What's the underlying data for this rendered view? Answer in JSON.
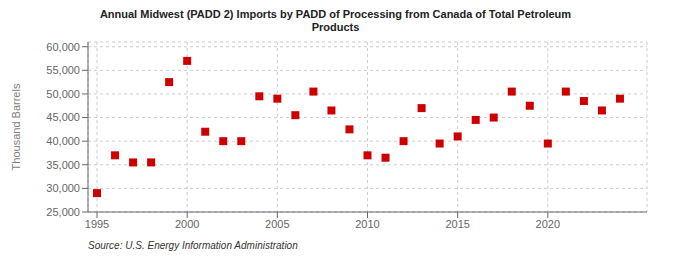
{
  "chart_data": {
    "type": "scatter",
    "title": "Annual Midwest (PADD 2) Imports by PADD of Processing from Canada of Total Petroleum\nProducts",
    "ylabel": "Thousand Barrels",
    "annotations": [
      "Source: U.S. Energy Information Administration"
    ],
    "x": [
      1995,
      1996,
      1997,
      1998,
      1999,
      2000,
      2001,
      2002,
      2003,
      2004,
      2005,
      2006,
      2007,
      2008,
      2009,
      2010,
      2011,
      2012,
      2013,
      2014,
      2015,
      2016,
      2017,
      2018,
      2019,
      2020,
      2021,
      2022,
      2023,
      2024
    ],
    "values": [
      29000,
      37000,
      35500,
      35500,
      52500,
      57000,
      42000,
      40000,
      40000,
      49500,
      49000,
      45500,
      50500,
      46500,
      42500,
      37000,
      36500,
      40000,
      47000,
      39500,
      41000,
      44500,
      45000,
      50500,
      47500,
      39500,
      50500,
      48500,
      46500,
      49000
    ],
    "color": "#cc0000",
    "marker": "square",
    "xlim": [
      1994.5,
      2025.5
    ],
    "xticks": [
      1995,
      2000,
      2005,
      2010,
      2015,
      2020
    ],
    "ylim": [
      25000,
      61000
    ],
    "yticks": [
      {
        "value": 25000,
        "label": "25,000"
      },
      {
        "value": 30000,
        "label": "30,000"
      },
      {
        "value": 35000,
        "label": "35,000"
      },
      {
        "value": 40000,
        "label": "40,000"
      },
      {
        "value": 45000,
        "label": "45,000"
      },
      {
        "value": 50000,
        "label": "50,000"
      },
      {
        "value": 55000,
        "label": "55,000"
      },
      {
        "value": 60000,
        "label": "60,000"
      }
    ],
    "grid": true
  }
}
